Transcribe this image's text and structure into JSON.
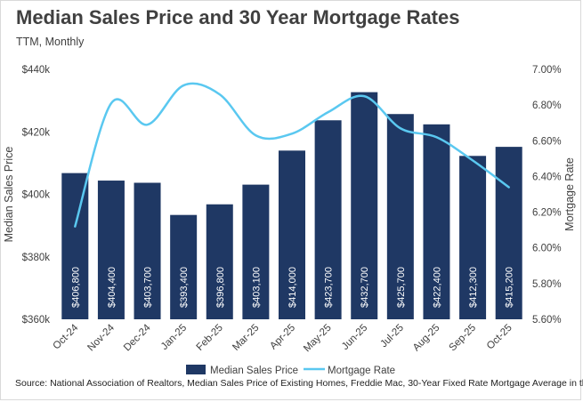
{
  "title": "Median Sales Price and 30 Year Mortgage Rates",
  "subtitle": "TTM, Monthly",
  "source": "Source: National Association of Realtors, Median Sales Price of Existing Homes, Freddie Mac, 30-Year Fixed Rate Mortgage Average in the US",
  "colors": {
    "bar": "#1f3864",
    "line": "#5ac8f0",
    "text": "#404040"
  },
  "chart_data": {
    "type": "bar",
    "categories": [
      "Oct-24",
      "Nov-24",
      "Dec-24",
      "Jan-25",
      "Feb-25",
      "Mar-25",
      "Apr-25",
      "May-25",
      "Jun-25",
      "Jul-25",
      "Aug-25",
      "Sep-25",
      "Oct-25"
    ],
    "series": [
      {
        "name": "Median Sales Price",
        "type": "bar",
        "axis": "left",
        "values": [
          406800,
          404400,
          403700,
          393400,
          396800,
          403100,
          414000,
          423700,
          432700,
          425700,
          422400,
          412300,
          415200
        ],
        "labels": [
          "$406,800",
          "$404,400",
          "$403,700",
          "$393,400",
          "$396,800",
          "$403,100",
          "$414,000",
          "$423,700",
          "$432,700",
          "$425,700",
          "$422,400",
          "$412,300",
          "$415,200"
        ]
      },
      {
        "name": "Mortgage Rate",
        "type": "line",
        "axis": "right",
        "values": [
          6.12,
          6.81,
          6.69,
          6.91,
          6.86,
          6.63,
          6.64,
          6.76,
          6.85,
          6.67,
          6.62,
          6.49,
          6.34
        ]
      }
    ],
    "ylabel": "Median Sales Price",
    "y2label": "Mortgage Rate",
    "ylim": [
      360000,
      440000
    ],
    "y2lim": [
      5.6,
      7.0
    ],
    "yticks": [
      "$360k",
      "$380k",
      "$400k",
      "$420k",
      "$440k"
    ],
    "y2ticks": [
      "5.60%",
      "5.80%",
      "6.00%",
      "6.20%",
      "6.40%",
      "6.60%",
      "6.80%",
      "7.00%"
    ],
    "grid": false,
    "legend": "bottom"
  }
}
